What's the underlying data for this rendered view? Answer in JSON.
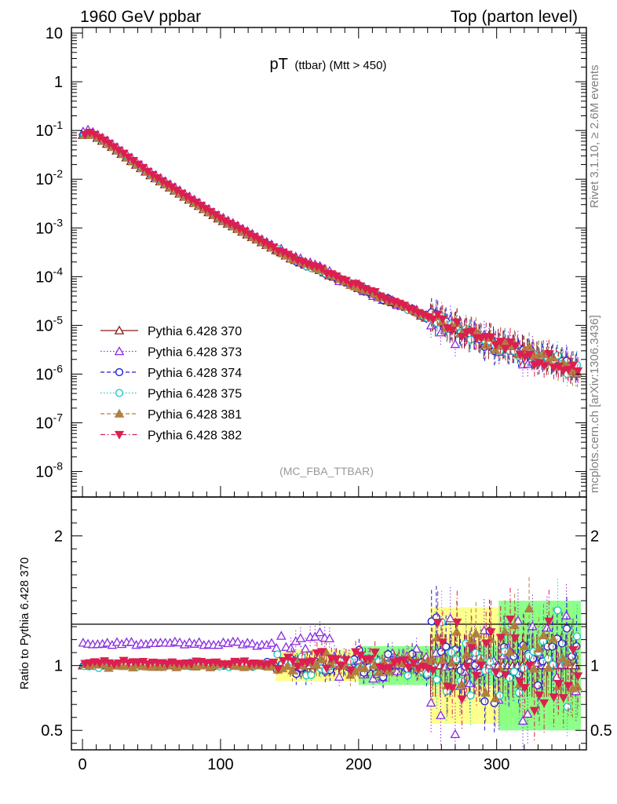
{
  "header": {
    "left": "1960 GeV ppbar",
    "right": "Top (parton level)"
  },
  "side_text": {
    "rivet": "Rivet 3.1.10, ≥ 2.6M events",
    "mcplots": "mcplots.cern.ch [arXiv:1306.3436]"
  },
  "chart_data": [
    {
      "type": "scatter",
      "title_main": "pT",
      "title_sub": "(ttbar) (Mtt > 450)",
      "annotation": "(MC_FBA_TTBAR)",
      "yscale": "log",
      "ylim": [
        3e-09,
        13
      ],
      "xlim": [
        -8,
        365
      ],
      "ytick_labels": [
        "10^-8",
        "10^-7",
        "10^-6",
        "10^-5",
        "10^-4",
        "10^-3",
        "10^-2",
        "10^-1",
        "1",
        "10"
      ],
      "legend_position": "lower-left",
      "series": [
        {
          "name": "Pythia 6.428 370",
          "color": "#8b1a1a",
          "marker": "triangle-up-open",
          "line": "solid"
        },
        {
          "name": "Pythia 6.428 373",
          "color": "#8a2be2",
          "marker": "triangle-up-open",
          "line": "dotted"
        },
        {
          "name": "Pythia 6.428 374",
          "color": "#1e1ed2",
          "marker": "circle-open",
          "line": "dashed"
        },
        {
          "name": "Pythia 6.428 375",
          "color": "#20c8c0",
          "marker": "circle-open",
          "line": "dotted"
        },
        {
          "name": "Pythia 6.428 381",
          "color": "#b08040",
          "marker": "triangle-up-filled",
          "line": "dashed"
        },
        {
          "name": "Pythia 6.428 382",
          "color": "#dc1e50",
          "marker": "triangle-down-filled",
          "line": "dashdot"
        }
      ],
      "shape_anchors_x": [
        5,
        20,
        50,
        100,
        150,
        200,
        250,
        300,
        350,
        360
      ],
      "shape_anchors_y": [
        0.09,
        0.05,
        0.012,
        0.0015,
        0.00025,
        6e-05,
        1.5e-05,
        4e-06,
        1.5e-06,
        1.2e-06
      ]
    },
    {
      "type": "scatter",
      "ylabel": "Ratio to Pythia 6.428 370",
      "ylim": [
        0.35,
        2.3
      ],
      "xlim": [
        -8,
        365
      ],
      "xticks": [
        0,
        100,
        200,
        300
      ],
      "yticks": [
        0.5,
        1,
        2
      ],
      "reference_line": 1,
      "bands": [
        {
          "color": "#ffff80",
          "start_x": 140
        },
        {
          "color": "#80ff80",
          "start_x": 200
        }
      ],
      "series_ratio_levels": {
        "Pythia 6.428 370": 1.0,
        "Pythia 6.428 373": 1.17,
        "Pythia 6.428 374": 1.01,
        "Pythia 6.428 375": 1.0,
        "Pythia 6.428 381": 1.0,
        "Pythia 6.428 382": 1.02
      }
    }
  ]
}
